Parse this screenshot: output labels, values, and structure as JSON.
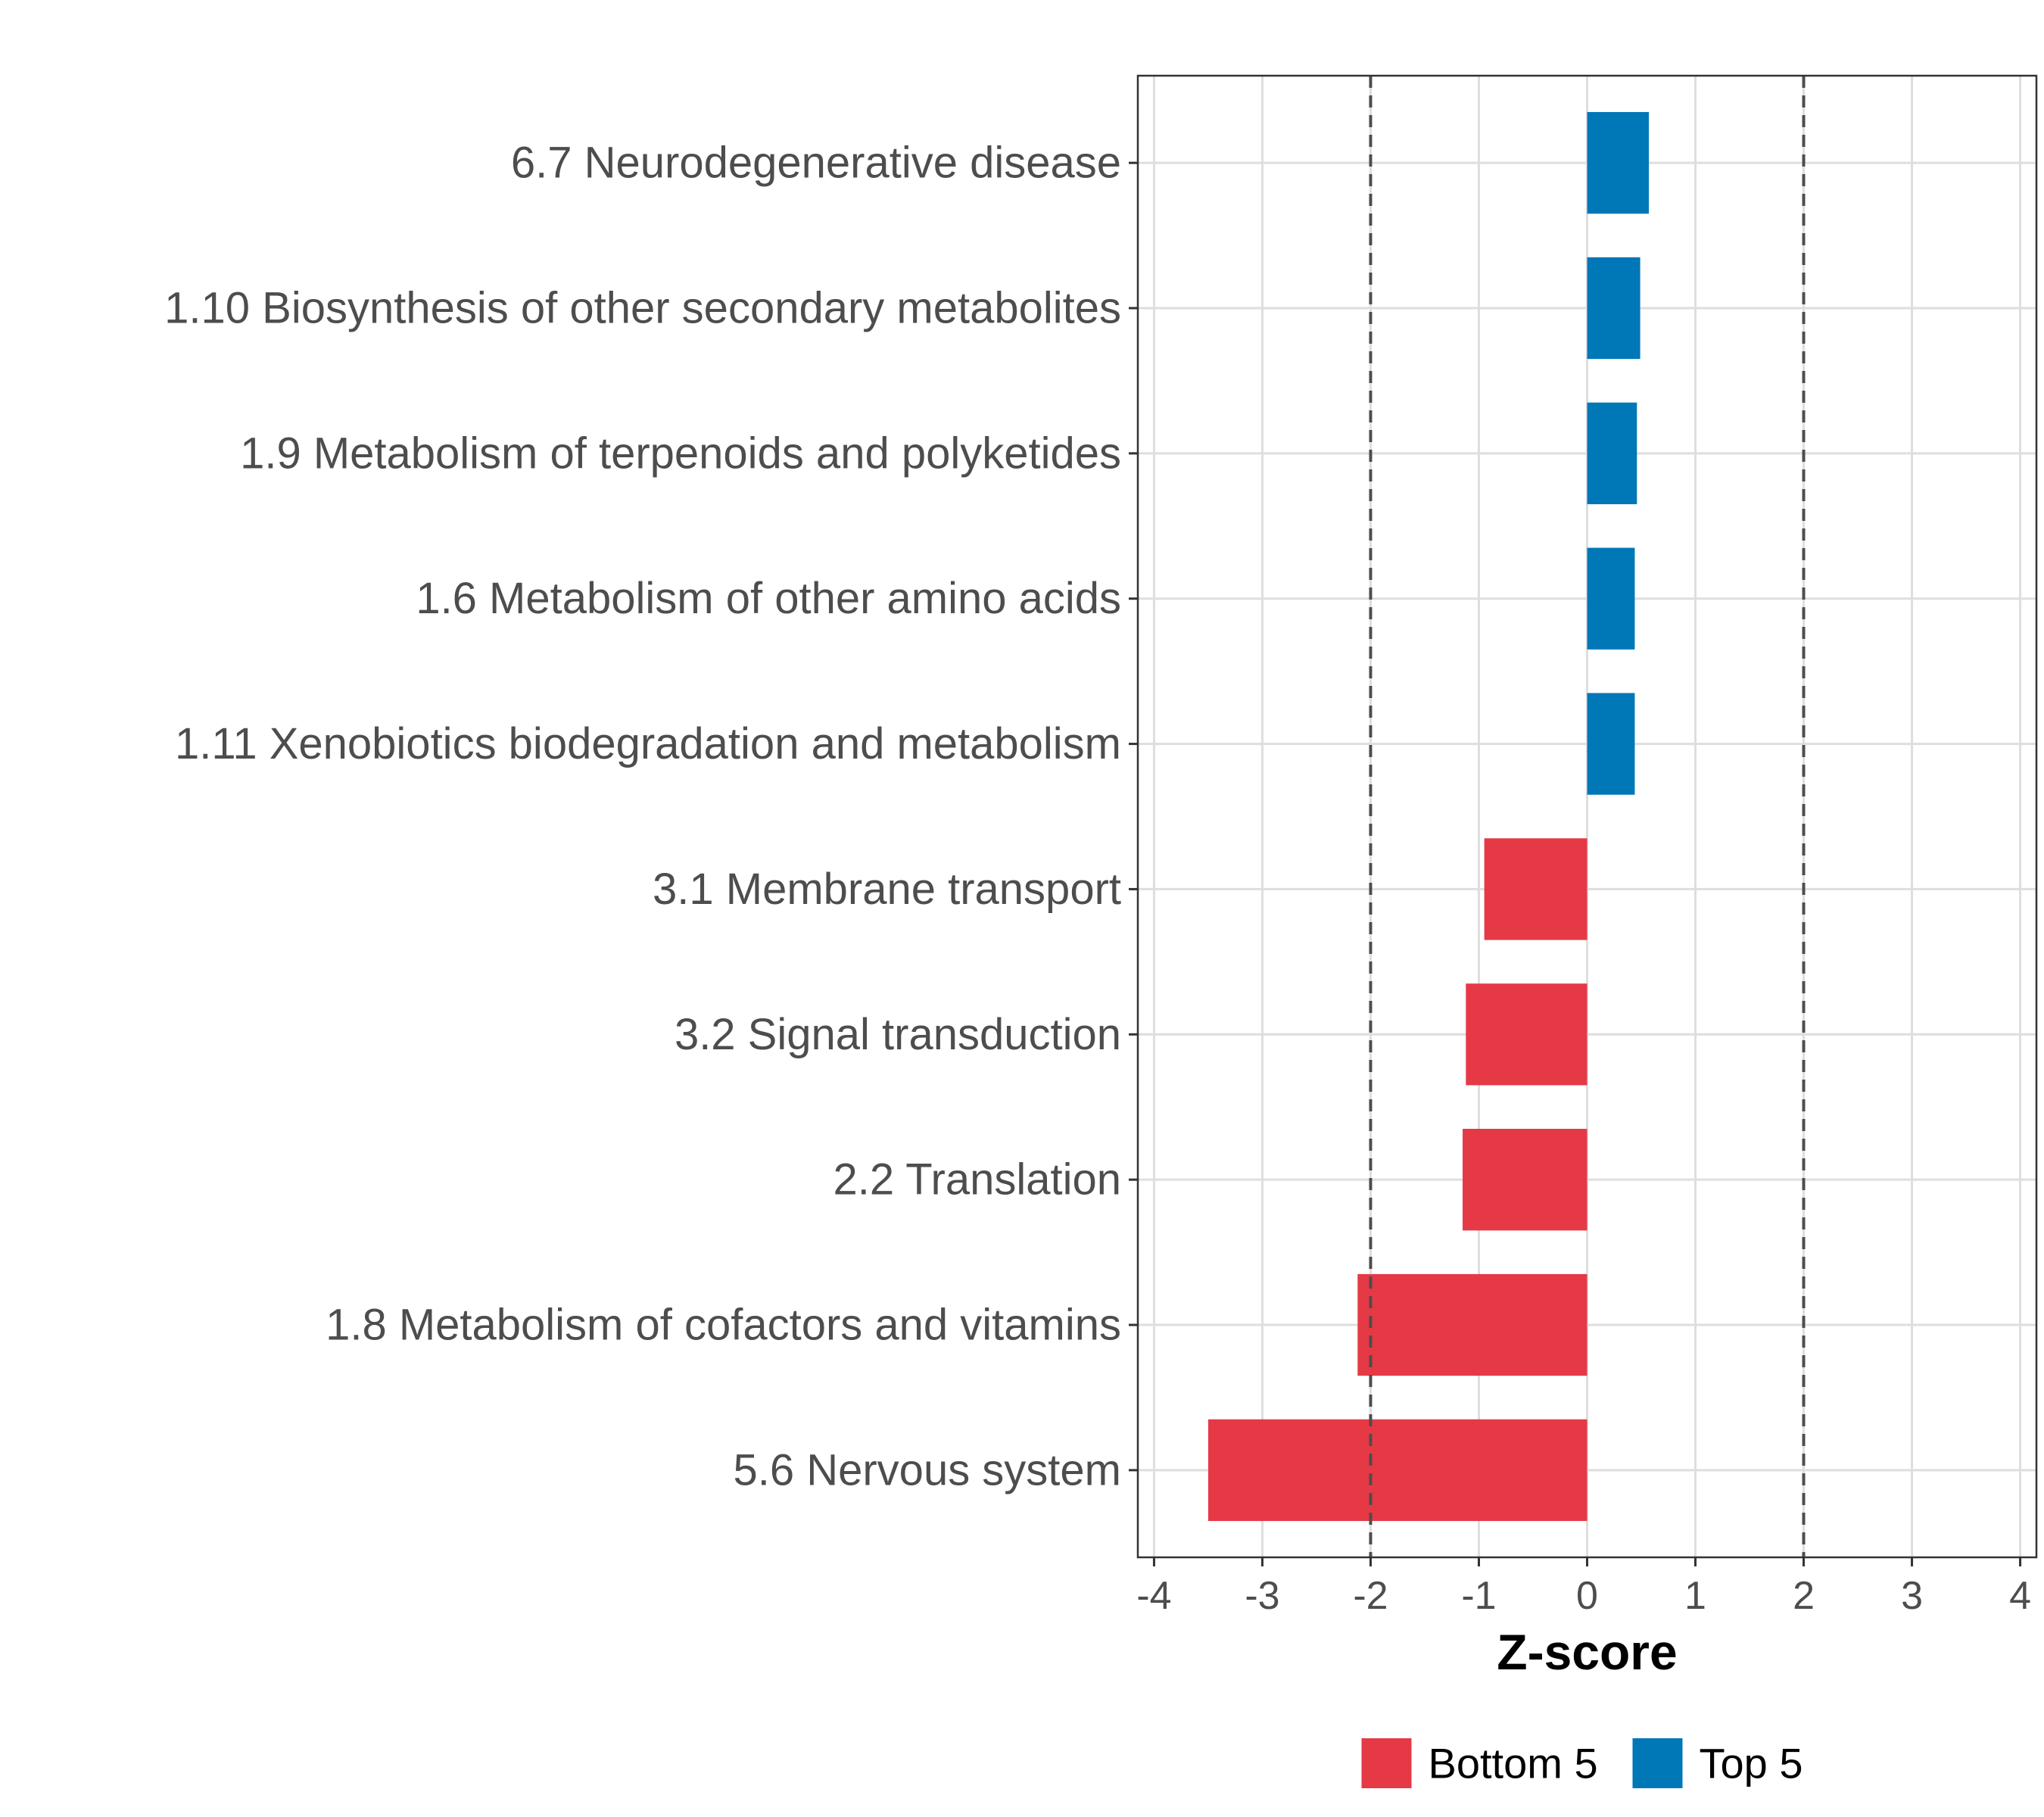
{
  "chart_data": {
    "type": "bar",
    "orientation": "horizontal",
    "xlabel": "Z-score",
    "ylabel": "",
    "xlim": [
      -4.15,
      4.15
    ],
    "xticks": [
      -4,
      -3,
      -2,
      -1,
      0,
      1,
      2,
      3,
      4
    ],
    "reference_lines": [
      -2,
      2
    ],
    "grid": true,
    "categories": [
      "6.7 Neurodegenerative disease",
      "1.10 Biosynthesis of other secondary metabolites",
      "1.9 Metabolism of terpenoids and polyketides",
      "1.6 Metabolism of other amino acids",
      "1.11 Xenobiotics biodegradation and metabolism",
      "3.1 Membrane transport",
      "3.2 Signal transduction",
      "2.2 Translation",
      "1.8 Metabolism of cofactors and vitamins",
      "5.6 Nervous system"
    ],
    "values": [
      0.57,
      0.49,
      0.46,
      0.44,
      0.44,
      -0.95,
      -1.12,
      -1.15,
      -2.12,
      -3.5
    ],
    "groups": [
      "Top 5",
      "Top 5",
      "Top 5",
      "Top 5",
      "Top 5",
      "Bottom 5",
      "Bottom 5",
      "Bottom 5",
      "Bottom 5",
      "Bottom 5"
    ],
    "legend": {
      "position": "bottom",
      "entries": [
        {
          "label": "Bottom 5",
          "color": "#E63946"
        },
        {
          "label": "Top 5",
          "color": "#0077B6"
        }
      ]
    }
  }
}
